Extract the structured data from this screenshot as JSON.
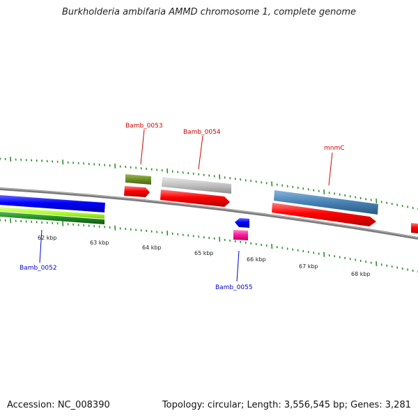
{
  "title": "Burkholderia ambifaria AMMD chromosome 1, complete genome",
  "footer": {
    "accession": "Accession: NC_008390",
    "summary": "Topology: circular; Length: 3,556,545 bp; Genes: 3,281"
  },
  "colors": {
    "backbone": "#808080",
    "tick": "#2e8b2e",
    "forward_gene": "#cc0000",
    "reverse_gene": "#0000cc",
    "cds_red": "#ff0000",
    "blue_block": "#0000ff",
    "olive_block": "#6b8e23",
    "gray_block": "#b8b8b8",
    "steelblue_block": "#4682b4",
    "magenta_block": "#ff1493",
    "lime_block": "#adff2f",
    "green_block": "#228b22"
  },
  "scale_labels": [
    "62 kbp",
    "63 kbp",
    "64 kbp",
    "65 kbp",
    "66 kbp",
    "67 kbp",
    "68 kbp"
  ],
  "gene_labels": {
    "bamb_0052": "Bamb_0052",
    "bamb_0053": "Bamb_0053",
    "bamb_0054": "Bamb_0054",
    "bamb_0055": "Bamb_0055",
    "mnmc": "mnmC"
  }
}
